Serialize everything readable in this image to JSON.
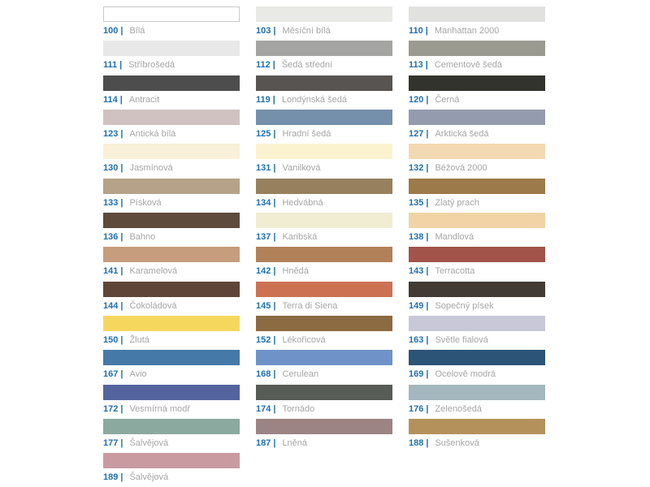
{
  "palette": {
    "label_separator": "|",
    "code_text_color": "#1e6fb2",
    "name_text_color": "#a5a5a5",
    "background_color": "#ffffff",
    "columns": [
      {
        "items": [
          {
            "code": "100",
            "name": "Bílá",
            "color": "#ffffff",
            "border": "#c9c9c9"
          },
          {
            "code": "111",
            "name": "Stříbrošedá",
            "color": "#e8e8e8"
          },
          {
            "code": "114",
            "name": "Antracit",
            "color": "#4d4d4d"
          },
          {
            "code": "123",
            "name": "Antická bílá",
            "color": "#cfc2c1"
          },
          {
            "code": "130",
            "name": "Jasmínová",
            "color": "#f8f0d8"
          },
          {
            "code": "133",
            "name": "Písková",
            "color": "#b5a288"
          },
          {
            "code": "136",
            "name": "Bahno",
            "color": "#5e4b3c"
          },
          {
            "code": "141",
            "name": "Karamelová",
            "color": "#c69d7d"
          },
          {
            "code": "144",
            "name": "Čokoládová",
            "color": "#5f4537"
          },
          {
            "code": "150",
            "name": "Žlutá",
            "color": "#f6d75e"
          },
          {
            "code": "167",
            "name": "Avio",
            "color": "#4579a8"
          },
          {
            "code": "172",
            "name": "Vesmírná modř",
            "color": "#53649e"
          },
          {
            "code": "177",
            "name": "Šalvějová",
            "color": "#8ba99e"
          },
          {
            "code": "189",
            "name": "Šalvějová",
            "color": "#c99ba1"
          }
        ]
      },
      {
        "items": [
          {
            "code": "103",
            "name": "Měsíční bílá",
            "color": "#e9eae5"
          },
          {
            "code": "112",
            "name": "Šedá střední",
            "color": "#a4a4a2"
          },
          {
            "code": "119",
            "name": "Londýnská šedá",
            "color": "#575452"
          },
          {
            "code": "125",
            "name": "Hradní šedá",
            "color": "#7590ab"
          },
          {
            "code": "131",
            "name": "Vanilková",
            "color": "#fbf3d0"
          },
          {
            "code": "134",
            "name": "Hedvábná",
            "color": "#97805d"
          },
          {
            "code": "137",
            "name": "Karibská",
            "color": "#f1edd3"
          },
          {
            "code": "142",
            "name": "Hnědá",
            "color": "#b2815a"
          },
          {
            "code": "145",
            "name": "Terra di Siena",
            "color": "#cc7252"
          },
          {
            "code": "152",
            "name": "Lékořicová",
            "color": "#8c6a42"
          },
          {
            "code": "168",
            "name": "Cerulean",
            "color": "#6f93c8"
          },
          {
            "code": "174",
            "name": "Tornádo",
            "color": "#575c56"
          },
          {
            "code": "187",
            "name": "Lněná",
            "color": "#9c8384"
          }
        ]
      },
      {
        "items": [
          {
            "code": "110",
            "name": "Manhattan 2000",
            "color": "#e1e2e0"
          },
          {
            "code": "113",
            "name": "Cementově šedá",
            "color": "#9a9a90"
          },
          {
            "code": "120",
            "name": "Černá",
            "color": "#33332d"
          },
          {
            "code": "127",
            "name": "Arktická šedá",
            "color": "#949bae"
          },
          {
            "code": "132",
            "name": "Béžová 2000",
            "color": "#f3d9b1"
          },
          {
            "code": "135",
            "name": "Zlatý prach",
            "color": "#9d7a49"
          },
          {
            "code": "138",
            "name": "Mandlová",
            "color": "#f1d3a5"
          },
          {
            "code": "143",
            "name": "Terracotta",
            "color": "#a2534a"
          },
          {
            "code": "149",
            "name": "Sopečný písek",
            "color": "#423b35"
          },
          {
            "code": "163",
            "name": "Světle fialová",
            "color": "#c9c8d9"
          },
          {
            "code": "169",
            "name": "Ocelově modrá",
            "color": "#2b5477"
          },
          {
            "code": "176",
            "name": "Zelenošedá",
            "color": "#a4b7be"
          },
          {
            "code": "188",
            "name": "Sušenková",
            "color": "#b4915b"
          }
        ]
      }
    ]
  }
}
